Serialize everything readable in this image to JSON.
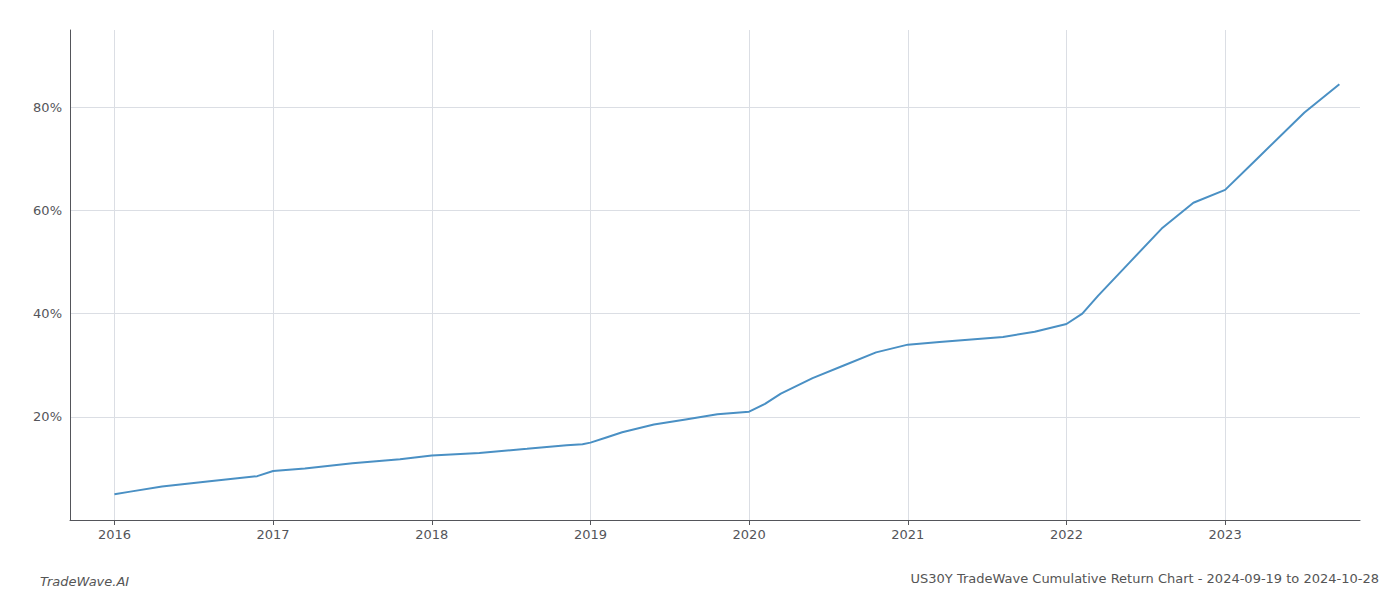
{
  "chart_data": {
    "type": "line",
    "title": "US30Y TradeWave Cumulative Return Chart - 2024-09-19 to 2024-10-28",
    "annotations": [
      "TradeWave.AI"
    ],
    "x": [
      2016.0,
      2016.1,
      2016.3,
      2016.6,
      2016.9,
      2017.0,
      2017.2,
      2017.5,
      2017.8,
      2018.0,
      2018.3,
      2018.6,
      2018.85,
      2018.95,
      2019.0,
      2019.1,
      2019.2,
      2019.4,
      2019.6,
      2019.8,
      2020.0,
      2020.1,
      2020.2,
      2020.4,
      2020.6,
      2020.8,
      2021.0,
      2021.2,
      2021.4,
      2021.6,
      2021.8,
      2022.0,
      2022.1,
      2022.2,
      2022.4,
      2022.6,
      2022.8,
      2023.0,
      2023.2,
      2023.5,
      2023.72
    ],
    "values": [
      5.0,
      5.5,
      6.5,
      7.5,
      8.5,
      9.5,
      10.0,
      11.0,
      11.8,
      12.5,
      13.0,
      13.8,
      14.5,
      14.7,
      15.0,
      16.0,
      17.0,
      18.5,
      19.5,
      20.5,
      21.0,
      22.5,
      24.5,
      27.5,
      30.0,
      32.5,
      34.0,
      34.5,
      35.0,
      35.5,
      36.5,
      38.0,
      40.0,
      43.5,
      50.0,
      56.5,
      61.5,
      64.0,
      70.0,
      79.0,
      84.5
    ],
    "color": "#4a90c4",
    "xlim": [
      2015.72,
      2023.85
    ],
    "xticks": [
      2016,
      2017,
      2018,
      2019,
      2020,
      2021,
      2022,
      2023
    ],
    "ylim": [
      0,
      95
    ],
    "yticks": [
      {
        "value": 20,
        "label": "20%"
      },
      {
        "value": 40,
        "label": "40%"
      },
      {
        "value": 60,
        "label": "60%"
      },
      {
        "value": 80,
        "label": "80%"
      }
    ],
    "grid": true
  }
}
